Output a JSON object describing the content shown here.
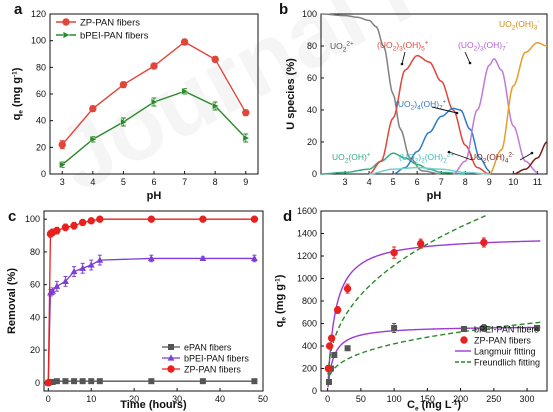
{
  "watermark": "Journal Pre-proof",
  "chart_data": [
    {
      "panel": "a",
      "type": "line",
      "xlabel": "pH",
      "ylabel": "q",
      "ylabel_sub": "e",
      "ylabel_unit": " (mg g",
      "ylabel_sup": "-1",
      "ylabel_close": ")",
      "xlim": [
        2.6,
        9.4
      ],
      "ylim": [
        0,
        120
      ],
      "xticks": [
        3,
        4,
        5,
        6,
        7,
        8,
        9
      ],
      "yticks": [
        0,
        20,
        40,
        60,
        80,
        100,
        120
      ],
      "legend_position": "top-left",
      "series": [
        {
          "name": "ZP-PAN fibers",
          "color": "#e2453a",
          "marker": "circle",
          "x": [
            3,
            4,
            5,
            6,
            7,
            8,
            9
          ],
          "values": [
            22,
            49,
            67,
            81,
            99,
            86,
            46
          ],
          "err": [
            3,
            2,
            2,
            2,
            2,
            2,
            2
          ]
        },
        {
          "name": "bPEI-PAN fibers",
          "color": "#2a8a2a",
          "marker": "triangle-right",
          "x": [
            3,
            4,
            5,
            6,
            7,
            8,
            9
          ],
          "values": [
            7,
            26,
            39,
            54,
            62,
            51,
            27
          ],
          "err": [
            2,
            2,
            3,
            3,
            2,
            3,
            3
          ]
        }
      ]
    },
    {
      "panel": "b",
      "type": "line",
      "xlabel": "pH",
      "ylabel": "U species (%)",
      "xlim": [
        2,
        11.4
      ],
      "ylim": [
        0,
        100
      ],
      "xticks": [
        3,
        4,
        5,
        6,
        7,
        8,
        9,
        10,
        11
      ],
      "yticks": [
        0,
        20,
        40,
        60,
        80,
        100
      ],
      "series": [
        {
          "name": "UO2 2+",
          "color": "#808080",
          "x": [
            2,
            3,
            3.5,
            4,
            4.3,
            4.6,
            5,
            5.3,
            5.7,
            6.2,
            7
          ],
          "values": [
            100,
            99,
            98,
            96,
            92,
            80,
            50,
            28,
            10,
            2,
            0
          ]
        },
        {
          "name": "UO2(OH)+",
          "color": "#2fae7f",
          "x": [
            2,
            3,
            4,
            4.5,
            5,
            5.5,
            6,
            6.5,
            7,
            8
          ],
          "values": [
            0,
            1,
            3,
            8,
            13,
            10,
            6,
            3,
            1,
            0
          ]
        },
        {
          "name": "(UO2)3(OH)5+",
          "color": "#e2453a",
          "x": [
            4,
            4.5,
            5,
            5.5,
            6,
            6.5,
            7,
            7.5,
            8,
            8.5,
            9
          ],
          "values": [
            0,
            8,
            35,
            65,
            74,
            70,
            58,
            40,
            18,
            4,
            0
          ]
        },
        {
          "name": "(UO2)4(OH)7+",
          "color": "#2e7bc4",
          "x": [
            5,
            5.5,
            6,
            6.5,
            7,
            7.5,
            7.8,
            8.2,
            8.6,
            9
          ],
          "values": [
            0,
            4,
            14,
            26,
            36,
            41,
            40,
            28,
            10,
            2
          ]
        },
        {
          "name": "(UO2)2(OH)2 2+",
          "color": "#6fd0d0",
          "x": [
            4,
            5,
            6,
            7,
            8,
            9
          ],
          "values": [
            0,
            3,
            4,
            3,
            1,
            0
          ]
        },
        {
          "name": "(UO2)3(OH)7-",
          "color": "#c07ad8",
          "x": [
            7.5,
            8,
            8.5,
            9,
            9.2,
            9.5,
            10,
            10.5,
            11
          ],
          "values": [
            0,
            8,
            40,
            68,
            72,
            65,
            30,
            8,
            1
          ]
        },
        {
          "name": "UO2(OH)3-",
          "color": "#e2a02a",
          "x": [
            9,
            9.5,
            10,
            10.5,
            11,
            11.4
          ],
          "values": [
            0,
            15,
            55,
            76,
            82,
            80
          ]
        },
        {
          "name": "UO2(OH)4 2-",
          "color": "#7a1a1a",
          "x": [
            10,
            10.5,
            11,
            11.4
          ],
          "values": [
            0,
            3,
            10,
            20
          ]
        }
      ],
      "labels": [
        {
          "main": "UO",
          "sub": "2",
          "sup": "2+",
          "rest": "",
          "color": "#555555"
        },
        {
          "main": "(UO",
          "sub": "2",
          "rest": ")",
          "sub2": "3",
          "rest2": "(OH)",
          "sub3": "5",
          "sup": "+",
          "color": "#e2453a"
        },
        {
          "main": "(UO",
          "sub": "2",
          "rest": ")",
          "sub2": "3",
          "rest2": "(OH)",
          "sub3": "7",
          "sup": "-",
          "color": "#b060d0"
        },
        {
          "main": "UO",
          "sub": "2",
          "rest": "(OH)",
          "sub2": "3",
          "sup": "-",
          "color": "#d08a10"
        },
        {
          "main": "(UO",
          "sub": "2",
          "rest": ")",
          "sub2": "4",
          "rest2": "(OH)",
          "sub3": "7",
          "sup": "+",
          "color": "#2e7bc4"
        },
        {
          "main": "UO",
          "sub": "2",
          "rest": "(OH)",
          "sup": "+",
          "color": "#2fae7f"
        },
        {
          "main": "(UO",
          "sub": "2",
          "rest": ")",
          "sub2": "2",
          "rest2": "(OH)",
          "sub3": "2",
          "sup": "2+",
          "color": "#3ab8b8"
        },
        {
          "main": "UO",
          "sub": "2",
          "rest": "(OH)",
          "sub2": "4",
          "sup": "2-",
          "color": "#7a1a1a"
        }
      ]
    },
    {
      "panel": "c",
      "type": "line",
      "xlabel": "Time (hours)",
      "ylabel": "Removal (%)",
      "xlim": [
        -1,
        50
      ],
      "ylim": [
        -5,
        105
      ],
      "xticks": [
        0,
        10,
        20,
        30,
        40,
        50
      ],
      "yticks": [
        0,
        20,
        40,
        60,
        80,
        100
      ],
      "legend_position": "center-right",
      "series": [
        {
          "name": "ePAN fibers",
          "color": "#555555",
          "marker": "square",
          "x": [
            0,
            0.5,
            1,
            2,
            4,
            6,
            8,
            10,
            12,
            24,
            36,
            48
          ],
          "values": [
            0,
            0.5,
            0.5,
            1,
            1,
            1,
            1,
            1,
            1,
            1,
            1,
            1
          ],
          "err": []
        },
        {
          "name": "bPEI-PAN fibers",
          "color": "#7b3fd6",
          "marker": "triangle",
          "x": [
            0,
            0.5,
            1,
            2,
            4,
            6,
            8,
            10,
            12,
            24,
            36,
            48
          ],
          "values": [
            0,
            55,
            56,
            59,
            62,
            68,
            70,
            72,
            75,
            76,
            76,
            76
          ],
          "err": [
            0,
            2,
            2,
            3,
            3,
            3,
            3,
            3,
            3,
            2,
            1,
            2
          ]
        },
        {
          "name": "ZP-PAN fibers",
          "color": "#e8201e",
          "marker": "circle",
          "x": [
            0,
            0.5,
            1,
            2,
            4,
            6,
            8,
            10,
            12,
            24,
            36,
            48
          ],
          "values": [
            0,
            91,
            92,
            93,
            95,
            96,
            98,
            99,
            100,
            100,
            100,
            100
          ],
          "err": [
            0,
            2,
            2,
            2,
            2,
            2,
            1,
            1,
            1,
            1,
            1,
            1
          ]
        }
      ]
    },
    {
      "panel": "d",
      "type": "scatter",
      "xlabel": "C",
      "xlabel_sub": "e",
      "xlabel_unit": " (mg L",
      "xlabel_sup": "-1",
      "xlabel_close": ")",
      "ylabel": "q",
      "ylabel_sub": "e",
      "ylabel_unit": " (mg g",
      "ylabel_sup": "-1",
      "ylabel_close": ")",
      "xlim": [
        -10,
        330
      ],
      "ylim": [
        0,
        1600
      ],
      "xticks": [
        0,
        50,
        100,
        150,
        200,
        250,
        300
      ],
      "yticks": [
        0,
        200,
        400,
        600,
        800,
        1000,
        1200,
        1400,
        1600
      ],
      "legend_position": "bottom-right",
      "series": [
        {
          "name": "bPEI-PAN fibers",
          "color": "#555555",
          "marker": "square",
          "x": [
            2,
            5,
            10,
            30,
            100,
            235,
            315
          ],
          "values": [
            80,
            200,
            320,
            380,
            560,
            560,
            560
          ],
          "err": [
            10,
            10,
            15,
            20,
            40,
            30,
            20
          ]
        },
        {
          "name": "ZP-PAN fibers",
          "color": "#e8201e",
          "marker": "circle",
          "x": [
            1,
            3,
            6,
            15,
            30,
            100,
            140,
            235
          ],
          "values": [
            200,
            400,
            470,
            720,
            910,
            1230,
            1310,
            1320
          ],
          "err": [
            10,
            15,
            20,
            30,
            40,
            50,
            40,
            40
          ]
        }
      ],
      "fits": [
        {
          "name": "Langmuir fitting",
          "color": "#9b3bd6",
          "style": "solid"
        },
        {
          "name": "Freundlich fitting",
          "color": "#2a8a2a",
          "style": "dashed"
        }
      ]
    }
  ]
}
